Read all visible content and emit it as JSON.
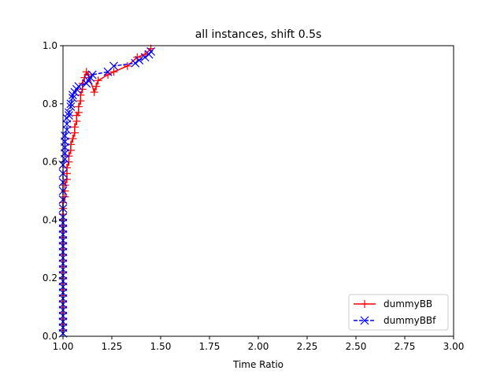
{
  "chart_data": {
    "type": "line",
    "title": "all instances, shift 0.5s",
    "xlabel": "Time Ratio",
    "ylabel": "",
    "xlim": [
      1.0,
      3.0
    ],
    "ylim": [
      0.0,
      1.0
    ],
    "xticks": [
      "1.00",
      "1.25",
      "1.50",
      "1.75",
      "2.00",
      "2.25",
      "2.50",
      "2.75",
      "3.00"
    ],
    "yticks": [
      "0.0",
      "0.2",
      "0.4",
      "0.6",
      "0.8",
      "1.0"
    ],
    "grid": false,
    "legend_position": "lower-right",
    "series": [
      {
        "name": "dummyBB",
        "color": "#ff0000",
        "marker": "plus",
        "linestyle": "solid",
        "x": [
          1.0,
          1.0,
          1.0,
          1.0,
          1.0,
          1.0,
          1.0,
          1.0,
          1.0,
          1.0,
          1.0,
          1.0,
          1.0,
          1.0,
          1.0,
          1.0,
          1.0,
          1.0,
          1.0,
          1.0,
          1.0,
          1.0,
          1.0,
          1.01,
          1.01,
          1.01,
          1.02,
          1.02,
          1.02,
          1.03,
          1.03,
          1.04,
          1.04,
          1.05,
          1.06,
          1.06,
          1.07,
          1.07,
          1.08,
          1.08,
          1.09,
          1.09,
          1.1,
          1.1,
          1.11,
          1.12,
          1.13,
          1.16,
          1.17,
          1.18,
          1.23,
          1.26,
          1.33,
          1.38,
          1.42,
          1.45
        ],
        "y": [
          0.02,
          0.04,
          0.06,
          0.08,
          0.1,
          0.12,
          0.14,
          0.16,
          0.18,
          0.2,
          0.22,
          0.24,
          0.26,
          0.28,
          0.3,
          0.32,
          0.34,
          0.36,
          0.38,
          0.4,
          0.42,
          0.44,
          0.46,
          0.48,
          0.5,
          0.52,
          0.54,
          0.56,
          0.58,
          0.6,
          0.62,
          0.64,
          0.66,
          0.68,
          0.7,
          0.72,
          0.74,
          0.76,
          0.77,
          0.79,
          0.81,
          0.83,
          0.85,
          0.87,
          0.89,
          0.91,
          0.9,
          0.84,
          0.86,
          0.88,
          0.9,
          0.91,
          0.93,
          0.96,
          0.97,
          0.99
        ]
      },
      {
        "name": "dummyBBf",
        "color": "#0000ff",
        "marker": "x",
        "linestyle": "dashed",
        "x": [
          1.0,
          1.0,
          1.0,
          1.0,
          1.0,
          1.0,
          1.0,
          1.0,
          1.0,
          1.0,
          1.0,
          1.0,
          1.0,
          1.0,
          1.0,
          1.0,
          1.0,
          1.0,
          1.0,
          1.0,
          1.0,
          1.0,
          1.0,
          1.0,
          1.0,
          1.0,
          1.0,
          1.01,
          1.01,
          1.01,
          1.01,
          1.01,
          1.02,
          1.02,
          1.02,
          1.03,
          1.03,
          1.04,
          1.04,
          1.05,
          1.05,
          1.06,
          1.07,
          1.08,
          1.12,
          1.13,
          1.14,
          1.15,
          1.23,
          1.26,
          1.37,
          1.39,
          1.42,
          1.44,
          1.45
        ],
        "y": [
          0.01,
          0.03,
          0.05,
          0.07,
          0.09,
          0.11,
          0.13,
          0.15,
          0.17,
          0.19,
          0.21,
          0.23,
          0.25,
          0.27,
          0.29,
          0.31,
          0.33,
          0.35,
          0.37,
          0.39,
          0.41,
          0.44,
          0.47,
          0.5,
          0.53,
          0.56,
          0.59,
          0.61,
          0.63,
          0.65,
          0.67,
          0.69,
          0.71,
          0.73,
          0.75,
          0.76,
          0.77,
          0.79,
          0.8,
          0.82,
          0.83,
          0.84,
          0.85,
          0.86,
          0.87,
          0.88,
          0.89,
          0.9,
          0.91,
          0.93,
          0.94,
          0.95,
          0.96,
          0.97,
          0.98
        ]
      }
    ]
  }
}
